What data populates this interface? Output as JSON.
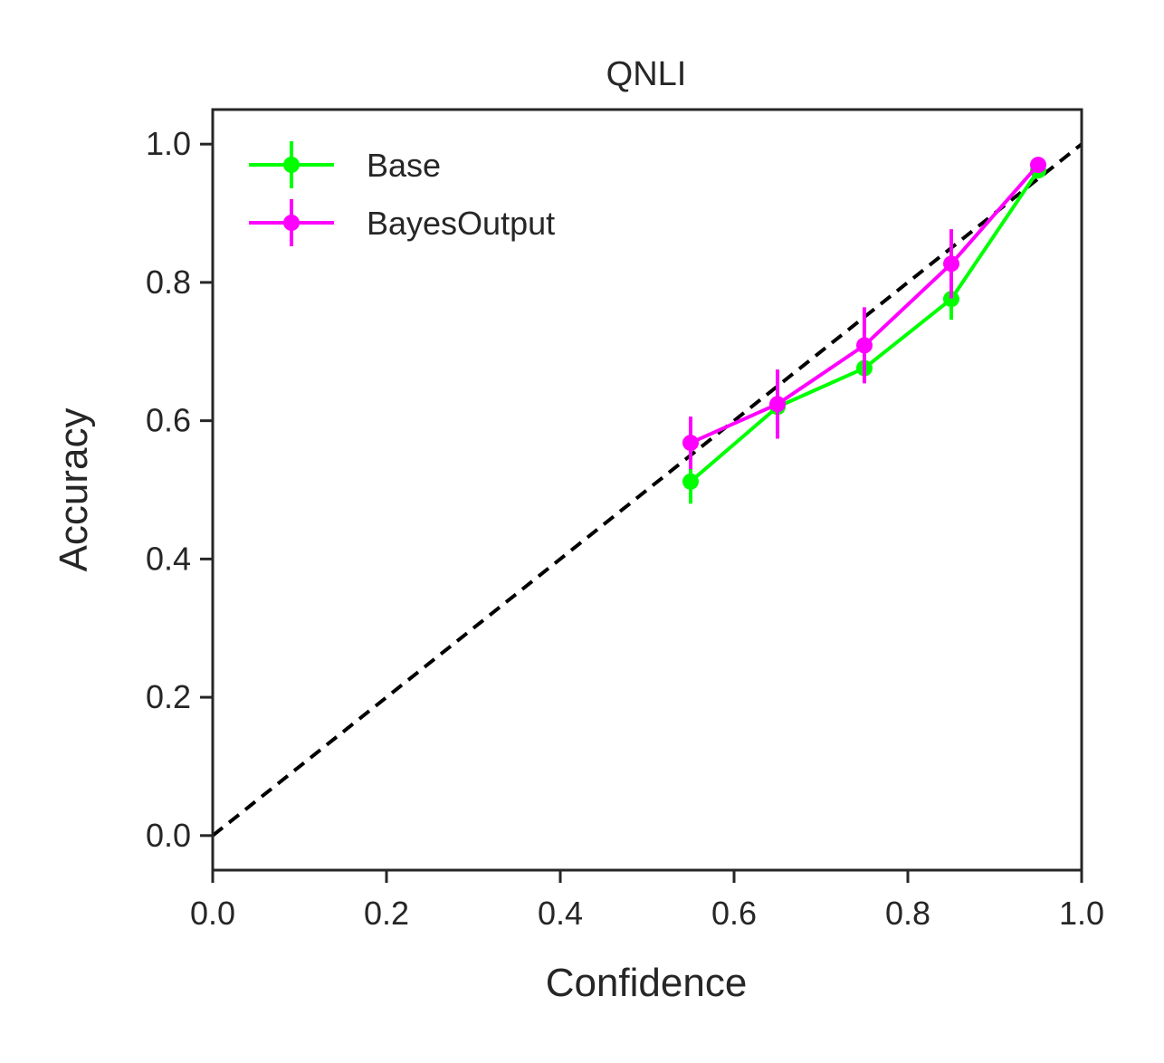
{
  "chart_data": {
    "type": "line",
    "title": "QNLI",
    "xlabel": "Confidence",
    "ylabel": "Accuracy",
    "xlim": [
      0.0,
      1.0
    ],
    "ylim": [
      -0.05,
      1.05
    ],
    "xticks": [
      0.0,
      0.2,
      0.4,
      0.6,
      0.8,
      1.0
    ],
    "xtick_labels": [
      "0.0",
      "0.2",
      "0.4",
      "0.6",
      "0.8",
      "1.0"
    ],
    "yticks": [
      0.0,
      0.2,
      0.4,
      0.6,
      0.8,
      1.0
    ],
    "ytick_labels": [
      "0.0",
      "0.2",
      "0.4",
      "0.6",
      "0.8",
      "1.0"
    ],
    "grid": false,
    "legend_position": "upper-left",
    "reference_line": {
      "style": "dashed",
      "color": "#000000",
      "from": [
        0.0,
        0.0
      ],
      "to": [
        1.0,
        1.0
      ]
    },
    "series": [
      {
        "name": "Base",
        "color": "#00ff00",
        "x": [
          0.55,
          0.65,
          0.75,
          0.85,
          0.95
        ],
        "y": [
          0.512,
          0.62,
          0.676,
          0.776,
          0.962
        ],
        "yerr": [
          0.032,
          0.025,
          0.02,
          0.03,
          0.008
        ]
      },
      {
        "name": "BayesOutput",
        "color": "#ff00ff",
        "x": [
          0.55,
          0.65,
          0.75,
          0.85,
          0.95
        ],
        "y": [
          0.568,
          0.624,
          0.709,
          0.827,
          0.97
        ],
        "yerr": [
          0.038,
          0.05,
          0.055,
          0.05,
          0.008
        ]
      }
    ]
  }
}
